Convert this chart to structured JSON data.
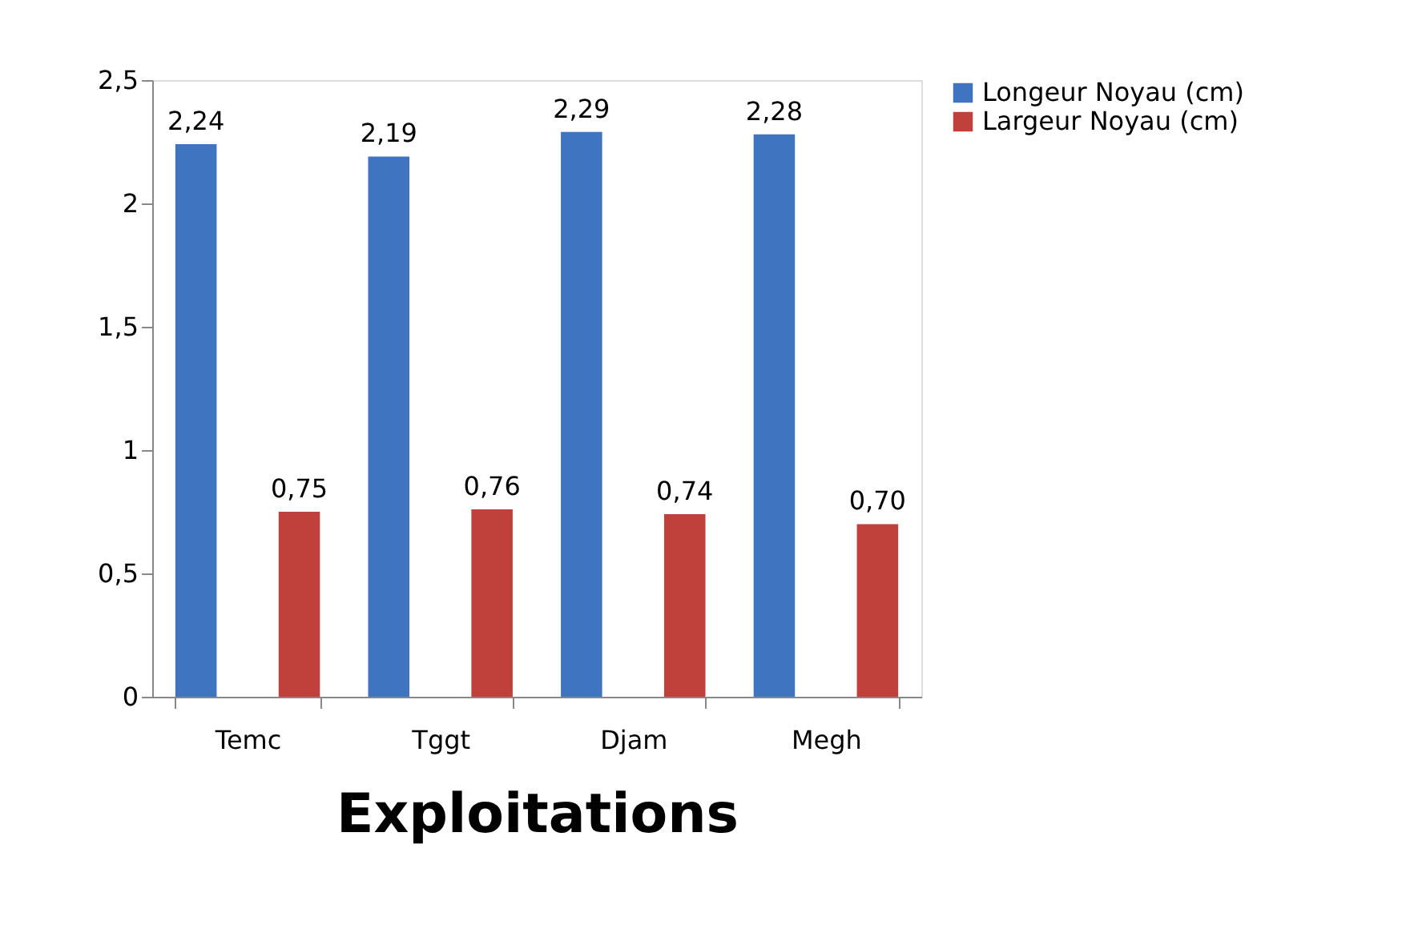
{
  "chart_data": {
    "type": "bar",
    "xlabel": "Exploitations",
    "categories": [
      "Temc",
      "Tggt",
      "Djam",
      "Megh"
    ],
    "series": [
      {
        "name": "Longeur Noyau (cm)",
        "color": "#3f74c0",
        "values": [
          2.24,
          2.19,
          2.29,
          2.28
        ],
        "value_labels": [
          "2,24",
          "2,19",
          "2,29",
          "2,28"
        ]
      },
      {
        "name": "Largeur Noyau (cm)",
        "color": "#c0403c",
        "values": [
          0.75,
          0.76,
          0.74,
          0.7
        ],
        "value_labels": [
          "0,75",
          "0,76",
          "0,74",
          "0,70"
        ]
      }
    ],
    "ylim": [
      0,
      2.5
    ],
    "yticks": [
      0,
      {
        "value": 0.5,
        "label": "0,5"
      },
      1,
      {
        "value": 1.5,
        "label": "1,5"
      },
      2,
      {
        "value": 2.5,
        "label": "2,5"
      }
    ],
    "grid": false,
    "legend": "right"
  }
}
